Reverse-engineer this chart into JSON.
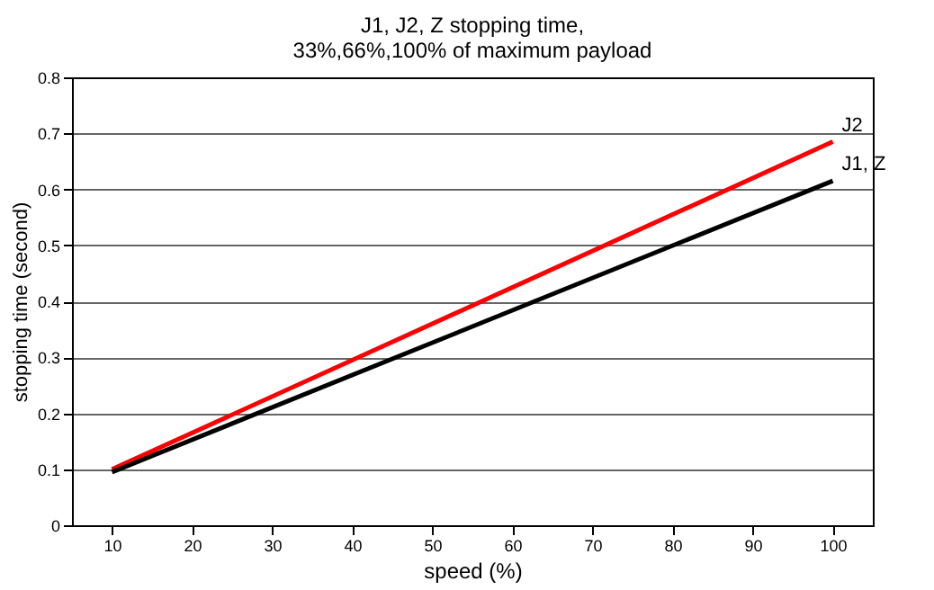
{
  "chart_data": {
    "type": "line",
    "title": [
      "J1, J2, Z stopping time,",
      "33%,66%,100% of maximum payload"
    ],
    "xlabel": "speed (%)",
    "ylabel": "stopping time (second)",
    "x": [
      10,
      100
    ],
    "series": [
      {
        "name": "J2",
        "color": "#ff0000",
        "values": [
          0.1,
          0.685
        ]
      },
      {
        "name": "J1, Z",
        "color": "#000000",
        "values": [
          0.095,
          0.615
        ]
      }
    ],
    "xlim": [
      5,
      105
    ],
    "xticks": [
      10,
      20,
      30,
      40,
      50,
      60,
      70,
      80,
      90,
      100
    ],
    "ylim": [
      0,
      0.8
    ],
    "yticks": [
      0,
      0.1,
      0.2,
      0.3,
      0.4,
      0.5,
      0.6,
      0.7,
      0.8
    ],
    "grid": "y",
    "marker": "none",
    "line_style": "solid"
  }
}
